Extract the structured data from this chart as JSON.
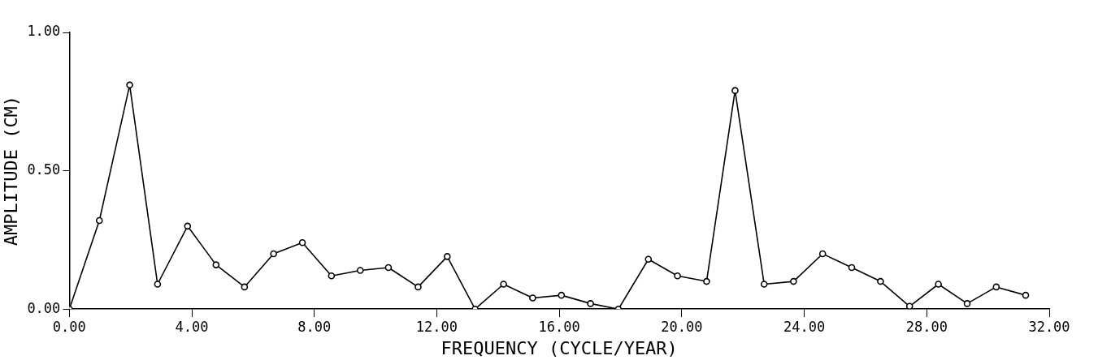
{
  "chart_data": {
    "type": "line",
    "xlabel": "FREQUENCY (CYCLE/YEAR)",
    "ylabel": "AMPLITUDE (CM)",
    "x": [
      0,
      0.98,
      1.97,
      2.88,
      3.86,
      4.79,
      5.72,
      6.67,
      7.61,
      8.56,
      9.5,
      10.42,
      11.39,
      12.34,
      13.25,
      14.18,
      15.13,
      16.07,
      17.02,
      17.93,
      18.91,
      19.86,
      20.81,
      21.74,
      22.69,
      23.65,
      24.6,
      25.55,
      26.49,
      27.44,
      28.38,
      29.32,
      30.27,
      31.23
    ],
    "values": [
      0,
      0.32,
      0.81,
      0.09,
      0.3,
      0.16,
      0.08,
      0.2,
      0.24,
      0.12,
      0.14,
      0.15,
      0.08,
      0.19,
      0,
      0.09,
      0.04,
      0.05,
      0.02,
      0,
      0.18,
      0.12,
      0.1,
      0.79,
      0.09,
      0.1,
      0.2,
      0.15,
      0.1,
      0.01,
      0.09,
      0.02,
      0.08,
      0.05
    ],
    "color": "#000000",
    "marker": "circle",
    "line_style": "solid",
    "grid": false,
    "legend": false,
    "xlim": [
      0,
      32
    ],
    "xticks": [
      {
        "value": 0,
        "label": "0.00"
      },
      {
        "value": 4,
        "label": "4.00"
      },
      {
        "value": 8,
        "label": "8.00"
      },
      {
        "value": 12,
        "label": "12.00"
      },
      {
        "value": 16,
        "label": "16.00"
      },
      {
        "value": 20,
        "label": "20.00"
      },
      {
        "value": 24,
        "label": "24.00"
      },
      {
        "value": 28,
        "label": "28.00"
      },
      {
        "value": 32,
        "label": "32.00"
      }
    ],
    "ylim": [
      0,
      1
    ],
    "yticks": [
      {
        "value": 0,
        "label": "0.00"
      },
      {
        "value": 0.5,
        "label": "0.50"
      },
      {
        "value": 1,
        "label": "1.00"
      }
    ]
  }
}
